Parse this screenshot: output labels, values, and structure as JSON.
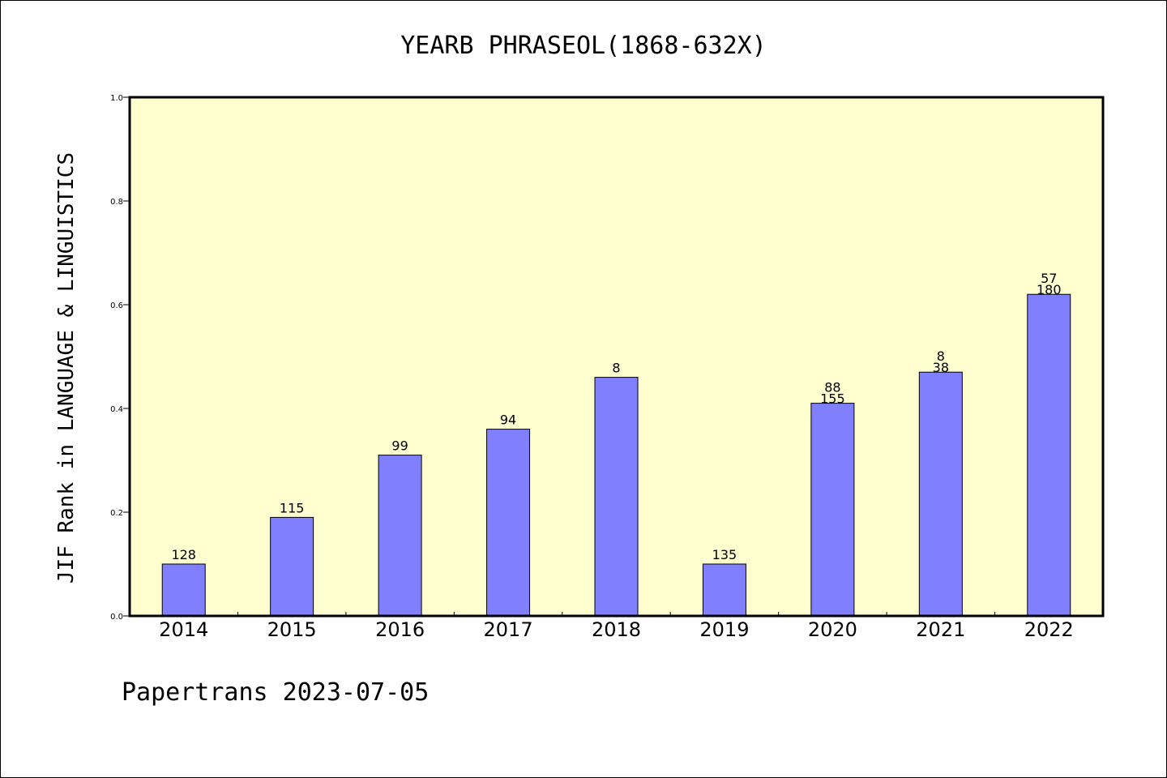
{
  "chart_data": {
    "type": "bar",
    "title": "YEARB PHRASEOL(1868-632X)",
    "ylabel": "JIF Rank in LANGUAGE & LINGUISTICS",
    "xlabel": "",
    "ylim": [
      0,
      1.0
    ],
    "yticks": [
      "0.0",
      "0.2",
      "0.4",
      "0.6",
      "0.8",
      "1.0"
    ],
    "categories": [
      "2014",
      "2015",
      "2016",
      "2017",
      "2018",
      "2019",
      "2020",
      "2021",
      "2022"
    ],
    "values": [
      0.1,
      0.19,
      0.31,
      0.36,
      0.46,
      0.1,
      0.41,
      0.47,
      0.62
    ],
    "labels": [
      [
        "128"
      ],
      [
        "115"
      ],
      [
        "99"
      ],
      [
        "94"
      ],
      [
        "8"
      ],
      [
        "135"
      ],
      [
        "88",
        "155"
      ],
      [
        "8",
        "38"
      ],
      [
        "57",
        "180"
      ]
    ],
    "bar_color": "#8080ff",
    "plot_background": "#ffffd0",
    "grid": false,
    "footer": "Papertrans 2023-07-05"
  }
}
